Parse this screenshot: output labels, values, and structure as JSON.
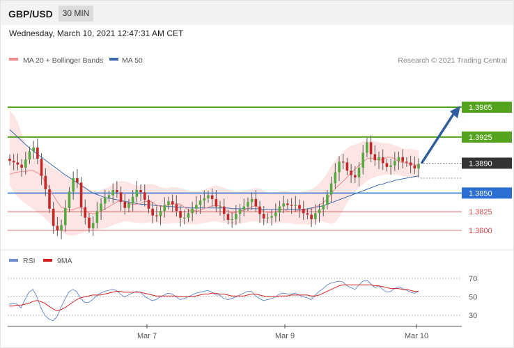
{
  "header": {
    "symbol": "GBP/USD",
    "timeframe": "30 MIN",
    "datetime": "Wednesday, March 10, 2021 12:47:31 AM CET"
  },
  "legend": {
    "items": [
      {
        "label": "MA 20 + Bollinger Bands",
        "color": "#f08a8a"
      },
      {
        "label": "MA 50",
        "color": "#3a6bb0"
      }
    ],
    "credit": "Research © 2021 Trading Central"
  },
  "rsi_legend": {
    "items": [
      {
        "label": "RSI",
        "color": "#6f8fd0"
      },
      {
        "label": "9MA",
        "color": "#d42020"
      }
    ]
  },
  "colors": {
    "up": "#55a93f",
    "down": "#c62828",
    "resistance": "#55a21e",
    "support": "#2a6fd1",
    "support_minor": "#d84848",
    "current": "#333333",
    "arrow": "#2f5f9a",
    "band": "#fde0e0"
  },
  "chart_data": [
    {
      "type": "candlestick",
      "title": "GBP/USD 30 MIN",
      "x_ticks": [
        "Mar 7",
        "Mar 9",
        "Mar 10"
      ],
      "ylim": [
        1.37,
        1.4005
      ],
      "levels": [
        {
          "value": "1.3965",
          "kind": "resistance"
        },
        {
          "value": "1.3925",
          "kind": "resistance"
        },
        {
          "value": "1.3890",
          "kind": "current"
        },
        {
          "value": "1.3850",
          "kind": "support"
        },
        {
          "value": "1.3825",
          "kind": "support_minor"
        },
        {
          "value": "1.3800",
          "kind": "support_minor"
        }
      ],
      "forecast": {
        "from": 1.389,
        "to": 1.3965
      },
      "candles": [
        1.3893,
        1.3891,
        1.3888,
        1.3884,
        1.3895,
        1.3906,
        1.3911,
        1.3896,
        1.3873,
        1.3855,
        1.3829,
        1.3806,
        1.38,
        1.3807,
        1.383,
        1.3852,
        1.387,
        1.3864,
        1.3831,
        1.3817,
        1.3803,
        1.381,
        1.3826,
        1.3836,
        1.3844,
        1.3847,
        1.3854,
        1.3851,
        1.3838,
        1.383,
        1.3836,
        1.3845,
        1.3854,
        1.3851,
        1.3841,
        1.3829,
        1.382,
        1.3819,
        1.3826,
        1.3834,
        1.3839,
        1.3835,
        1.3826,
        1.3817,
        1.3817,
        1.3823,
        1.3829,
        1.3834,
        1.384,
        1.3843,
        1.3847,
        1.3842,
        1.3832,
        1.3832,
        1.3822,
        1.3814,
        1.3815,
        1.3822,
        1.3828,
        1.3832,
        1.3838,
        1.3842,
        1.3832,
        1.3822,
        1.3816,
        1.3817,
        1.3819,
        1.3824,
        1.3832,
        1.3836,
        1.3834,
        1.3833,
        1.3834,
        1.3829,
        1.3823,
        1.3821,
        1.3815,
        1.3823,
        1.3828,
        1.3834,
        1.3848,
        1.3863,
        1.3878,
        1.3892,
        1.3891,
        1.388,
        1.3874,
        1.3871,
        1.3884,
        1.3904,
        1.3918,
        1.3902,
        1.3894,
        1.3898,
        1.389,
        1.3885,
        1.3887,
        1.3893,
        1.3898,
        1.3892,
        1.3891,
        1.3887,
        1.3883,
        1.3889
      ],
      "ma20": [
        1.3875,
        1.3877,
        1.3878,
        1.3879,
        1.3879,
        1.388,
        1.388,
        1.3877,
        1.3873,
        1.3864,
        1.3857,
        1.3847,
        1.3838,
        1.3831,
        1.3829,
        1.3827,
        1.3828,
        1.383,
        1.383,
        1.3828,
        1.3823,
        1.3822,
        1.3823,
        1.3826,
        1.3829,
        1.3832,
        1.3835,
        1.3838,
        1.384,
        1.3838,
        1.3836,
        1.3835,
        1.3835,
        1.3836,
        1.3839,
        1.3839,
        1.3838,
        1.3834,
        1.3832,
        1.3833,
        1.3834,
        1.3835,
        1.3836,
        1.3835,
        1.3831,
        1.3827,
        1.3827,
        1.3826,
        1.3827,
        1.3829,
        1.3831,
        1.3833,
        1.3833,
        1.3833,
        1.3829,
        1.3825,
        1.3823,
        1.3824,
        1.3826,
        1.3827,
        1.3829,
        1.3832,
        1.3833,
        1.3829,
        1.3825,
        1.3824,
        1.3824,
        1.3825,
        1.3827,
        1.3828,
        1.3826,
        1.3825,
        1.3826,
        1.3827,
        1.3827,
        1.3827,
        1.3828,
        1.3831,
        1.3834,
        1.3837,
        1.3842,
        1.3849,
        1.3856,
        1.3861,
        1.3866,
        1.3871,
        1.3877,
        1.3882,
        1.3887,
        1.3891,
        1.3896,
        1.3897,
        1.3896,
        1.3894,
        1.3895,
        1.3898,
        1.3898,
        1.3896,
        1.3892,
        1.3891,
        1.389,
        1.389,
        1.3888,
        1.3887
      ],
      "ma50": [
        1.3935,
        1.393,
        1.3925,
        1.392,
        1.3915,
        1.391,
        1.3906,
        1.3902,
        1.3898,
        1.3894,
        1.389,
        1.3886,
        1.3882,
        1.3878,
        1.3874,
        1.3871,
        1.3867,
        1.3864,
        1.386,
        1.3857,
        1.3853,
        1.385,
        1.3848,
        1.3846,
        1.3844,
        1.3843,
        1.3842,
        1.3841,
        1.384,
        1.3839,
        1.3838,
        1.3837,
        1.3836,
        1.3835,
        1.3835,
        1.3834,
        1.3834,
        1.3833,
        1.3833,
        1.3832,
        1.3832,
        1.3832,
        1.3831,
        1.3831,
        1.3831,
        1.383,
        1.383,
        1.383,
        1.383,
        1.383,
        1.383,
        1.383,
        1.383,
        1.383,
        1.383,
        1.383,
        1.3829,
        1.3829,
        1.3829,
        1.3829,
        1.3829,
        1.3829,
        1.3829,
        1.3829,
        1.3828,
        1.3828,
        1.3828,
        1.3828,
        1.3828,
        1.3828,
        1.3828,
        1.3828,
        1.3828,
        1.3828,
        1.3828,
        1.3829,
        1.383,
        1.3831,
        1.3832,
        1.3833,
        1.3835,
        1.3837,
        1.3839,
        1.3841,
        1.3843,
        1.3845,
        1.3847,
        1.3849,
        1.3851,
        1.3853,
        1.3855,
        1.3857,
        1.3859,
        1.3861,
        1.3862,
        1.3864,
        1.3865,
        1.3867,
        1.3868,
        1.3869,
        1.387,
        1.3871,
        1.3872,
        1.3873
      ],
      "bb_upper": [
        1.396,
        1.3955,
        1.3945,
        1.393,
        1.3915,
        1.3905,
        1.39,
        1.3895,
        1.3893,
        1.389,
        1.3887,
        1.3883,
        1.388,
        1.3876,
        1.3873,
        1.387,
        1.3868,
        1.3866,
        1.3862,
        1.3858,
        1.3855,
        1.3853,
        1.3852,
        1.3854,
        1.3856,
        1.3858,
        1.3862,
        1.3865,
        1.3866,
        1.3866,
        1.3864,
        1.3862,
        1.386,
        1.386,
        1.3861,
        1.3862,
        1.3862,
        1.386,
        1.3858,
        1.3857,
        1.3857,
        1.3858,
        1.3858,
        1.3857,
        1.3855,
        1.3853,
        1.3852,
        1.3852,
        1.3853,
        1.3855,
        1.3857,
        1.3859,
        1.386,
        1.3859,
        1.3857,
        1.3855,
        1.3853,
        1.3852,
        1.3852,
        1.3853,
        1.3854,
        1.3856,
        1.3857,
        1.3856,
        1.3853,
        1.3851,
        1.3851,
        1.3851,
        1.3852,
        1.3853,
        1.3852,
        1.3851,
        1.3851,
        1.3851,
        1.3852,
        1.3853,
        1.3855,
        1.3858,
        1.3863,
        1.3869,
        1.3877,
        1.3886,
        1.3894,
        1.39,
        1.3905,
        1.391,
        1.3913,
        1.3915,
        1.3917,
        1.3919,
        1.392,
        1.392,
        1.3919,
        1.3918,
        1.3917,
        1.3917,
        1.3916,
        1.3914,
        1.3912,
        1.391,
        1.3909,
        1.3909,
        1.3908,
        1.3907
      ],
      "bb_lower": [
        1.386,
        1.3852,
        1.3845,
        1.384,
        1.3836,
        1.3832,
        1.3828,
        1.3824,
        1.382,
        1.3815,
        1.381,
        1.3806,
        1.3802,
        1.3798,
        1.3795,
        1.3793,
        1.3793,
        1.3794,
        1.3796,
        1.3798,
        1.3799,
        1.38,
        1.3801,
        1.3802,
        1.3803,
        1.3805,
        1.3807,
        1.3809,
        1.3811,
        1.3812,
        1.3812,
        1.3811,
        1.381,
        1.381,
        1.381,
        1.3811,
        1.3811,
        1.381,
        1.3809,
        1.3809,
        1.3809,
        1.381,
        1.381,
        1.381,
        1.3809,
        1.3808,
        1.3808,
        1.3808,
        1.3809,
        1.381,
        1.3811,
        1.3812,
        1.3812,
        1.3811,
        1.381,
        1.3809,
        1.3808,
        1.3808,
        1.3809,
        1.381,
        1.3811,
        1.3812,
        1.3812,
        1.3811,
        1.381,
        1.3809,
        1.3809,
        1.3809,
        1.381,
        1.381,
        1.381,
        1.3809,
        1.3808,
        1.3808,
        1.3808,
        1.3808,
        1.3808,
        1.381,
        1.3812,
        1.3812,
        1.381,
        1.3809,
        1.3811,
        1.3818,
        1.3827,
        1.3837,
        1.3845,
        1.3852,
        1.3857,
        1.3862,
        1.3866,
        1.3869,
        1.3871,
        1.3873,
        1.3874,
        1.3875,
        1.3875,
        1.3875,
        1.3874,
        1.3873,
        1.3872,
        1.3871,
        1.3871,
        1.387
      ]
    },
    {
      "type": "line",
      "title": "RSI",
      "x_ticks": [
        "Mar 7",
        "Mar 9",
        "Mar 10"
      ],
      "y_ticks": [
        "70",
        "50",
        "30"
      ],
      "ylim": [
        22,
        78
      ],
      "series": [
        {
          "name": "RSI",
          "values": [
            42,
            43,
            42,
            38,
            47,
            55,
            58,
            50,
            38,
            30,
            26,
            24,
            28,
            38,
            47,
            55,
            58,
            56,
            48,
            44,
            44,
            47,
            51,
            54,
            56,
            57,
            58,
            57,
            53,
            50,
            52,
            54,
            56,
            55,
            51,
            48,
            46,
            47,
            50,
            52,
            54,
            53,
            50,
            47,
            48,
            50,
            52,
            54,
            55,
            56,
            57,
            55,
            52,
            52,
            48,
            47,
            48,
            50,
            52,
            54,
            56,
            56,
            51,
            48,
            46,
            47,
            48,
            50,
            53,
            54,
            53,
            53,
            54,
            52,
            50,
            49,
            47,
            52,
            56,
            59,
            63,
            65,
            66,
            67,
            66,
            62,
            60,
            58,
            63,
            67,
            68,
            64,
            60,
            62,
            58,
            55,
            56,
            59,
            61,
            59,
            57,
            55,
            54,
            56
          ]
        },
        {
          "name": "9MA",
          "values": [
            40,
            40,
            41,
            41,
            42,
            43,
            45,
            46,
            45,
            43,
            40,
            37,
            35,
            36,
            38,
            41,
            44,
            47,
            49,
            50,
            51,
            52,
            52,
            52,
            53,
            54,
            55,
            56,
            56,
            55,
            55,
            55,
            55,
            55,
            54,
            53,
            52,
            51,
            51,
            51,
            51,
            51,
            51,
            50,
            50,
            50,
            50,
            51,
            52,
            53,
            53,
            54,
            54,
            53,
            53,
            52,
            51,
            51,
            51,
            51,
            52,
            53,
            53,
            52,
            51,
            50,
            50,
            50,
            51,
            51,
            51,
            52,
            52,
            52,
            52,
            52,
            51,
            51,
            52,
            54,
            56,
            58,
            60,
            62,
            63,
            63,
            63,
            63,
            63,
            63,
            63,
            63,
            62,
            62,
            61,
            60,
            59,
            59,
            59,
            58,
            58,
            57,
            56,
            56
          ]
        }
      ]
    }
  ]
}
